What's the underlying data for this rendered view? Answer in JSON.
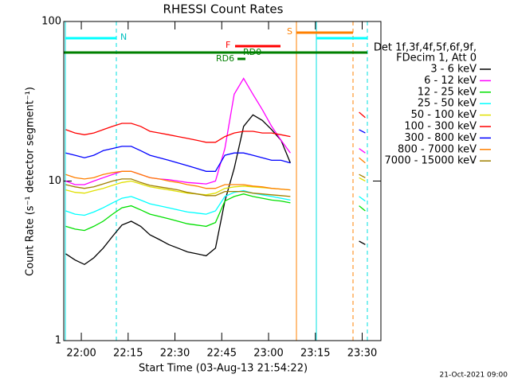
{
  "chart_data": {
    "type": "line",
    "title": "RHESSI Count Rates",
    "x_label": "Start Time (03-Aug-13 21:54:22)",
    "y_label": "Count Rate (s⁻¹ detector segment⁻¹)",
    "log_y": true,
    "xlim": [
      1314.37,
      1416
    ],
    "ylim": [
      1,
      100
    ],
    "xticks": [
      {
        "value": 1320,
        "label": "22:00"
      },
      {
        "value": 1335,
        "label": "22:15"
      },
      {
        "value": 1350,
        "label": "22:30"
      },
      {
        "value": 1365,
        "label": "22:45"
      },
      {
        "value": 1380,
        "label": "23:00"
      },
      {
        "value": 1395,
        "label": "23:15"
      },
      {
        "value": 1410,
        "label": "23:30"
      }
    ],
    "yticks": [
      1,
      10,
      100
    ],
    "legend_header": [
      "Det 1f,3f,4f,5f,6f,9f,",
      "FDecim 1, Att 0"
    ],
    "annotations": [
      "N",
      "S",
      "F",
      "RD0",
      "RD6"
    ],
    "footer": "21-Oct-2021 09:00",
    "x": [
      1315,
      1318,
      1321,
      1324,
      1327,
      1330,
      1333,
      1336,
      1339,
      1342,
      1345,
      1348,
      1351,
      1354,
      1357,
      1360,
      1363,
      1366,
      1369,
      1372,
      1375,
      1378,
      1381,
      1384,
      1387,
      1398,
      1409,
      1411
    ],
    "series": [
      {
        "name": "3 - 6 keV",
        "color": "#000000",
        "values": [
          3.5,
          3.2,
          3.0,
          3.3,
          3.8,
          4.5,
          5.3,
          5.6,
          5.2,
          4.6,
          4.3,
          4.0,
          3.8,
          3.6,
          3.5,
          3.4,
          3.8,
          7.5,
          12,
          22,
          26,
          24,
          21,
          18,
          13,
          null,
          4.2,
          4.0
        ]
      },
      {
        "name": "6 - 12 keV",
        "color": "#ff00ff",
        "values": [
          10,
          9.5,
          9.5,
          10,
          10.5,
          11,
          11.5,
          11.5,
          11,
          10.5,
          10.3,
          10.2,
          10,
          9.8,
          9.7,
          9.6,
          10,
          16,
          35,
          44,
          35,
          28,
          22,
          18,
          15,
          null,
          16,
          15
        ]
      },
      {
        "name": "12 - 25 keV",
        "color": "#00e000",
        "values": [
          5.2,
          5,
          4.9,
          5.2,
          5.6,
          6.2,
          6.8,
          7,
          6.6,
          6.2,
          6,
          5.8,
          5.6,
          5.4,
          5.3,
          5.2,
          5.5,
          7.5,
          8,
          8.3,
          8,
          7.8,
          7.6,
          7.5,
          7.3,
          null,
          7,
          6.5
        ]
      },
      {
        "name": "25 - 50 keV",
        "color": "#00ffff",
        "values": [
          6.5,
          6.2,
          6.1,
          6.4,
          6.8,
          7.3,
          7.8,
          8,
          7.6,
          7.2,
          7,
          6.8,
          6.6,
          6.4,
          6.3,
          6.2,
          6.5,
          8,
          8.5,
          8.7,
          8.4,
          8.2,
          8,
          7.8,
          7.6,
          null,
          8,
          7.5
        ]
      },
      {
        "name": "50 - 100 keV",
        "color": "#e0e000",
        "values": [
          8.8,
          8.5,
          8.4,
          8.7,
          9,
          9.4,
          9.8,
          10,
          9.6,
          9.2,
          9,
          8.8,
          8.6,
          8.4,
          8.3,
          8.2,
          8.4,
          9,
          9.2,
          9.3,
          9.2,
          9.1,
          9,
          8.9,
          8.8,
          null,
          10.5,
          10
        ]
      },
      {
        "name": "100 - 300 keV",
        "color": "#ff0000",
        "values": [
          21,
          20,
          19.5,
          20,
          21,
          22,
          23,
          23,
          22,
          20.5,
          20,
          19.5,
          19,
          18.5,
          18,
          17.5,
          17.5,
          19,
          20,
          20.5,
          20.5,
          20,
          20,
          19.5,
          19,
          null,
          27,
          25
        ]
      },
      {
        "name": "300 - 800 keV",
        "color": "#0000ff",
        "values": [
          15,
          14.5,
          14,
          14.5,
          15.5,
          16,
          16.5,
          16.5,
          15.5,
          14.5,
          14,
          13.5,
          13,
          12.5,
          12,
          11.5,
          11.5,
          14.5,
          15,
          15,
          14.5,
          14,
          13.5,
          13.5,
          13,
          null,
          21,
          20
        ]
      },
      {
        "name": "800 - 7000 keV",
        "color": "#ff8000",
        "values": [
          11,
          10.5,
          10.3,
          10.5,
          11,
          11.3,
          11.5,
          11.5,
          11,
          10.5,
          10.3,
          10,
          9.8,
          9.5,
          9.3,
          9,
          9,
          9.5,
          9.5,
          9.5,
          9.3,
          9.2,
          9,
          8.9,
          8.8,
          null,
          14,
          13
        ]
      },
      {
        "name": "7000 - 15000 keV",
        "color": "#a08000",
        "values": [
          9.5,
          9.2,
          9,
          9.2,
          9.6,
          10,
          10.3,
          10.3,
          9.8,
          9.4,
          9.2,
          9,
          8.8,
          8.5,
          8.3,
          8.1,
          8.1,
          8.6,
          8.6,
          8.6,
          8.4,
          8.3,
          8.2,
          8.1,
          8,
          null,
          11,
          10.5
        ]
      }
    ]
  }
}
